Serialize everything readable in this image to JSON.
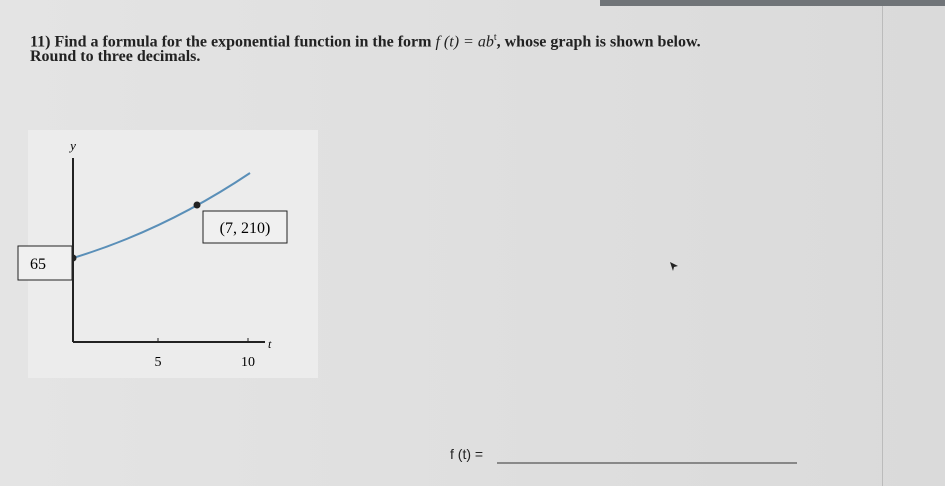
{
  "question": {
    "text": "11) Find a formula for the exponential function in the form",
    "formula": "f (t) = ab",
    "formula_exponent": "t",
    "text_after": ", whose graph is shown below.",
    "instruction": "Round to three decimals."
  },
  "graph": {
    "y_label": "y",
    "x_label": "t",
    "x_tick_labels": [
      "5",
      "10"
    ],
    "point_label": "(7, 210)",
    "intercept_label": "65"
  },
  "answer": {
    "label": "f (t) ="
  }
}
